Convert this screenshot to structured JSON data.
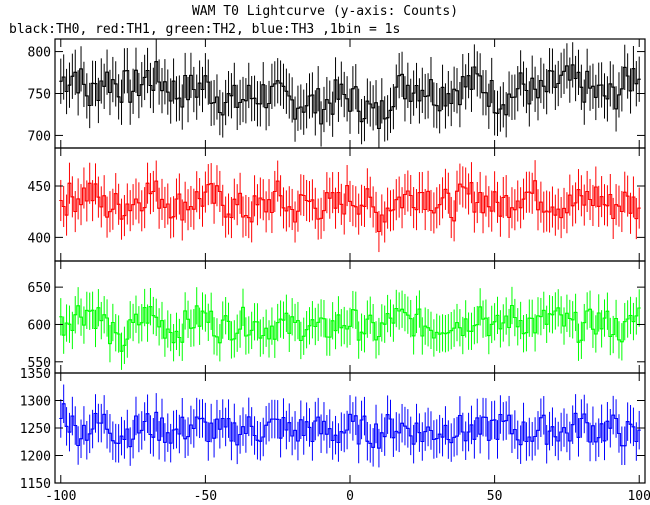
{
  "chart_data": {
    "type": "line",
    "title": "WAM T0 Lightcurve (y-axis: Counts)",
    "subtitle": "black:TH0, red:TH1, green:TH2, blue:TH3 ,1bin = 1s",
    "xlabel": "",
    "x_ticks": [
      -100,
      -50,
      0,
      50,
      100
    ],
    "xlim": [
      -102,
      102
    ],
    "series": [
      {
        "name": "TH0",
        "color": "#000000",
        "ylim": [
          685,
          815
        ],
        "y_ticks": [
          700,
          750,
          800
        ],
        "x": [
          -100,
          -95,
          -90,
          -85,
          -80,
          -75,
          -70,
          -65,
          -60,
          -55,
          -50,
          -45,
          -40,
          -35,
          -30,
          -25,
          -20,
          -15,
          -10,
          -5,
          0,
          5,
          10,
          15,
          20,
          25,
          30,
          35,
          40,
          45,
          50,
          55,
          60,
          65,
          70,
          75,
          80,
          85,
          90,
          95,
          100
        ],
        "values": [
          765,
          775,
          745,
          770,
          760,
          755,
          770,
          765,
          750,
          755,
          760,
          745,
          740,
          745,
          750,
          745,
          740,
          740,
          735,
          745,
          745,
          735,
          720,
          755,
          760,
          760,
          750,
          755,
          760,
          765,
          745,
          745,
          760,
          745,
          760,
          765,
          760,
          750,
          745,
          760,
          780
        ],
        "errors": 27
      },
      {
        "name": "TH1",
        "color": "#ff0000",
        "ylim": [
          377,
          487
        ],
        "y_ticks": [
          400,
          450
        ],
        "x": [
          -100,
          -95,
          -90,
          -85,
          -80,
          -75,
          -70,
          -65,
          -60,
          -55,
          -50,
          -45,
          -40,
          -35,
          -30,
          -25,
          -20,
          -15,
          -10,
          -5,
          0,
          5,
          10,
          15,
          20,
          25,
          30,
          35,
          40,
          45,
          50,
          55,
          60,
          65,
          70,
          75,
          80,
          85,
          90,
          95,
          100
        ],
        "values": [
          435,
          440,
          445,
          430,
          430,
          435,
          445,
          440,
          430,
          435,
          440,
          435,
          430,
          425,
          430,
          440,
          425,
          435,
          430,
          430,
          440,
          435,
          420,
          435,
          440,
          445,
          435,
          430,
          440,
          440,
          430,
          435,
          445,
          440,
          435,
          430,
          435,
          440,
          430,
          435,
          430
        ],
        "errors": 20
      },
      {
        "name": "TH2",
        "color": "#00ff00",
        "ylim": [
          535,
          685
        ],
        "y_ticks": [
          550,
          600,
          650
        ],
        "x": [
          -100,
          -95,
          -90,
          -85,
          -80,
          -75,
          -70,
          -65,
          -60,
          -55,
          -50,
          -45,
          -40,
          -35,
          -30,
          -25,
          -20,
          -15,
          -10,
          -5,
          0,
          5,
          10,
          15,
          20,
          25,
          30,
          35,
          40,
          45,
          50,
          55,
          60,
          65,
          70,
          75,
          80,
          85,
          90,
          95,
          100
        ],
        "values": [
          600,
          615,
          620,
          605,
          570,
          595,
          615,
          600,
          590,
          605,
          610,
          595,
          600,
          605,
          595,
          600,
          595,
          600,
          590,
          600,
          605,
          595,
          590,
          610,
          605,
          600,
          595,
          605,
          600,
          620,
          590,
          610,
          605,
          600,
          610,
          600,
          595,
          605,
          600,
          590,
          615
        ],
        "errors": 25
      },
      {
        "name": "TH3",
        "color": "#0000ff",
        "ylim": [
          1150,
          1350
        ],
        "y_ticks": [
          1150,
          1200,
          1250,
          1300,
          1350
        ],
        "x": [
          -100,
          -95,
          -90,
          -85,
          -80,
          -75,
          -70,
          -65,
          -60,
          -55,
          -50,
          -45,
          -40,
          -35,
          -30,
          -25,
          -20,
          -15,
          -10,
          -5,
          0,
          5,
          10,
          15,
          20,
          25,
          30,
          35,
          40,
          45,
          50,
          55,
          60,
          65,
          70,
          75,
          80,
          85,
          90,
          95,
          100
        ],
        "values": [
          1290,
          1245,
          1250,
          1260,
          1240,
          1245,
          1255,
          1250,
          1240,
          1255,
          1250,
          1240,
          1245,
          1250,
          1245,
          1255,
          1240,
          1250,
          1245,
          1240,
          1250,
          1245,
          1240,
          1255,
          1250,
          1240,
          1245,
          1250,
          1245,
          1240,
          1255,
          1250,
          1240,
          1245,
          1250,
          1240,
          1260,
          1245,
          1250,
          1240,
          1230
        ],
        "errors": 35
      }
    ]
  }
}
